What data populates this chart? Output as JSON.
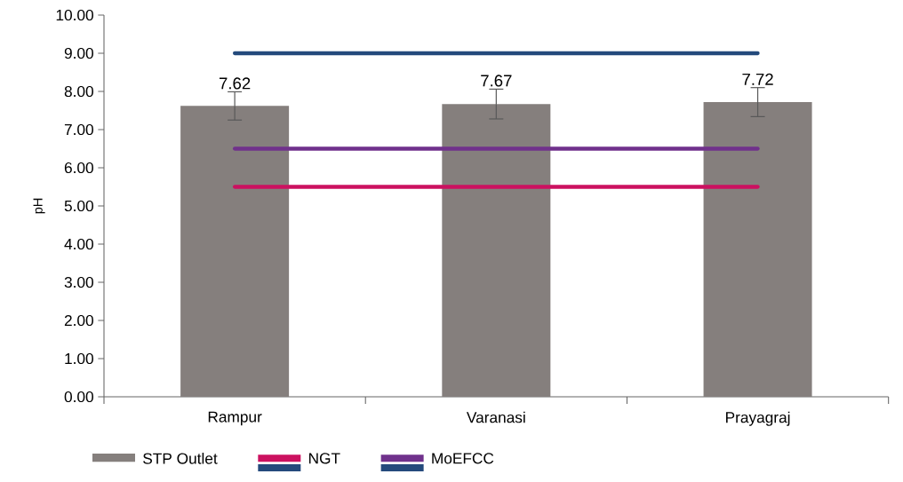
{
  "chart_data": {
    "type": "bar",
    "ylabel": "pH",
    "categories": [
      "Rampur",
      "Varanasi",
      "Prayagraj"
    ],
    "ylim": [
      0,
      10
    ],
    "yticks": [
      {
        "value": 0,
        "label": "0.00"
      },
      {
        "value": 1,
        "label": "1.00"
      },
      {
        "value": 2,
        "label": "2.00"
      },
      {
        "value": 3,
        "label": "3.00"
      },
      {
        "value": 4,
        "label": "4.00"
      },
      {
        "value": 5,
        "label": "5.00"
      },
      {
        "value": 6,
        "label": "6.00"
      },
      {
        "value": 7,
        "label": "7.00"
      },
      {
        "value": 8,
        "label": "8.00"
      },
      {
        "value": 9,
        "label": "9.00"
      },
      {
        "value": 10,
        "label": "10.00"
      }
    ],
    "legend": "bottom",
    "series": [
      {
        "name": "STP Outlet",
        "color": "#857f7d",
        "values": [
          7.62,
          7.67,
          7.72
        ],
        "errors": [
          0.37,
          0.39,
          0.38
        ],
        "value_labels": [
          "7.62",
          "7.67",
          "7.72"
        ]
      },
      {
        "name": "NGT",
        "type": "line",
        "color": "#cc1160",
        "values": [
          5.5,
          5.5,
          5.5
        ]
      },
      {
        "name": "MoEFCC",
        "type": "line",
        "color": "#70318c",
        "values": [
          6.5,
          6.5,
          6.5
        ]
      },
      {
        "type": "line",
        "color": "#244a7c",
        "values": [
          9,
          9,
          9
        ]
      }
    ]
  }
}
